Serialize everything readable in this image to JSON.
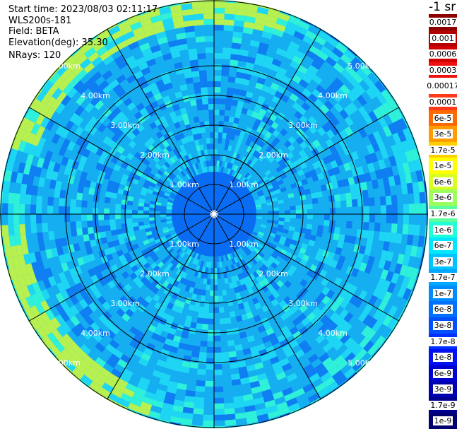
{
  "header": {
    "start_time": "Start time: 2023/08/03 02:11:17",
    "instrument": "WLS200s-181",
    "field": "Field: BETA",
    "elevation": "Elevation(deg): 35.30",
    "nrays": "NRays: 120"
  },
  "colorbar": {
    "unit": "-1 sr",
    "sections": [
      {
        "label": "0.0017",
        "color": "#8b0000"
      },
      {
        "label": "0.001",
        "color": "#b20000"
      },
      {
        "label": "0.0006",
        "color": "#d00000"
      },
      {
        "label": "0.0003",
        "color": "#f01010"
      },
      {
        "label": "0.00017",
        "color": "#ffffff"
      },
      {
        "label": "0.0001",
        "color": "#ff3a1a"
      },
      {
        "label": "6e-5",
        "color": "#ff6a00"
      },
      {
        "label": "3e-5",
        "color": "#ff9c00"
      },
      {
        "label": "1.7e-5",
        "color": "#ffd000"
      },
      {
        "label": "1e-5",
        "color": "#ffff00"
      },
      {
        "label": "6e-6",
        "color": "#d8ff20"
      },
      {
        "label": "3e-6",
        "color": "#9cff5c"
      },
      {
        "label": "1.7e-6",
        "color": "#5cff9c"
      },
      {
        "label": "1e-6",
        "color": "#20ffd8"
      },
      {
        "label": "6e-7",
        "color": "#00e8ff"
      },
      {
        "label": "3e-7",
        "color": "#00c4ff"
      },
      {
        "label": "1.7e-7",
        "color": "#00a8ff"
      },
      {
        "label": "1e-7",
        "color": "#008cff"
      },
      {
        "label": "6e-8",
        "color": "#0070ff"
      },
      {
        "label": "3e-8",
        "color": "#0050ff"
      },
      {
        "label": "1.7e-8",
        "color": "#0030ff"
      },
      {
        "label": "1e-8",
        "color": "#0010f0"
      },
      {
        "label": "6e-9",
        "color": "#0000d0"
      },
      {
        "label": "3e-9",
        "color": "#0000b0"
      },
      {
        "label": "1.7e-9",
        "color": "#000090"
      },
      {
        "label": "1e-9",
        "color": "#000070"
      }
    ]
  },
  "map": {
    "range_rings": [
      "1.00km",
      "2.00km",
      "3.00km",
      "4.00km",
      "5.00km"
    ],
    "spoke_count": 12,
    "colors": {
      "inner_disc": "#0a6cf2",
      "base": "#15aef0",
      "dark": "#0f7ef2",
      "light": "#1ed6f4",
      "aqua": "#2ff0d8",
      "yellow_green": "#b8f050",
      "lines": "#000000",
      "ring_label": "#ffffff"
    }
  }
}
